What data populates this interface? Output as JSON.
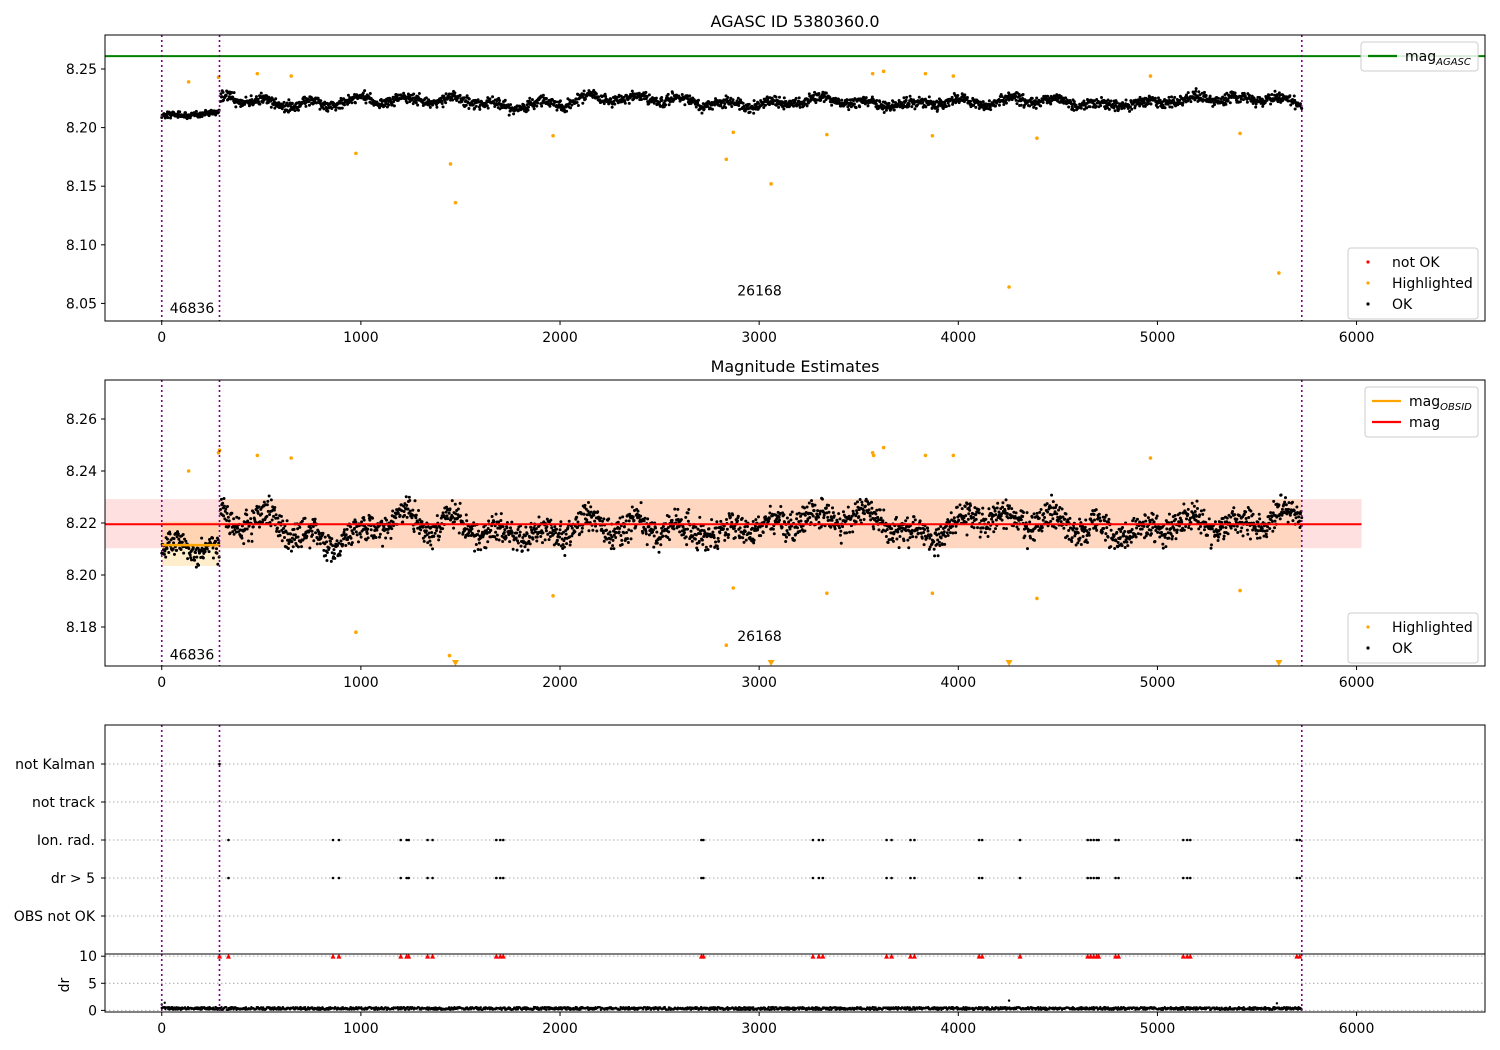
{
  "chart_data": [
    {
      "type": "scatter",
      "title": "AGASC ID 5380360.0",
      "xlabel": "",
      "ylabel": "",
      "xlim": [
        -285,
        6645
      ],
      "ylim": [
        8.035,
        8.279
      ],
      "xticks": [
        0,
        1000,
        2000,
        3000,
        4000,
        5000,
        6000
      ],
      "yticks": [
        8.05,
        8.1,
        8.15,
        8.2,
        8.25
      ],
      "grid": false,
      "vlines": [
        0,
        290,
        5725
      ],
      "obsid_labels": [
        {
          "text": "46836",
          "x": 40,
          "y": 8.046
        },
        {
          "text": "26168",
          "x": 2890,
          "y": 8.061
        }
      ],
      "hline": {
        "name": "mag",
        "sub": "AGASC",
        "y": 8.261,
        "color": "#008000"
      },
      "segments": [
        {
          "x0": 0,
          "x1": 290,
          "base": 8.21,
          "amp": 0.005
        },
        {
          "x0": 295,
          "x1": 5725,
          "base": 8.222,
          "amp": 0.008
        }
      ],
      "highlighted": [
        [
          135,
          8.239
        ],
        [
          285,
          8.243
        ],
        [
          480,
          8.246
        ],
        [
          650,
          8.244
        ],
        [
          975,
          8.178
        ],
        [
          1450,
          8.169
        ],
        [
          1475,
          8.136
        ],
        [
          1965,
          8.193
        ],
        [
          2835,
          8.173
        ],
        [
          2870,
          8.196
        ],
        [
          3060,
          8.152
        ],
        [
          3340,
          8.194
        ],
        [
          3570,
          8.246
        ],
        [
          3625,
          8.248
        ],
        [
          3835,
          8.246
        ],
        [
          3870,
          8.193
        ],
        [
          3975,
          8.244
        ],
        [
          4255,
          8.064
        ],
        [
          4395,
          8.191
        ],
        [
          4965,
          8.244
        ],
        [
          5415,
          8.195
        ],
        [
          5610,
          8.076
        ]
      ],
      "legends": [
        {
          "position": "upper-right",
          "items": [
            {
              "label": "mag",
              "sub": "AGASC",
              "kind": "line",
              "color": "#008000"
            }
          ]
        },
        {
          "position": "lower-right",
          "items": [
            {
              "label": "not OK",
              "kind": "dot",
              "color": "#ff0000"
            },
            {
              "label": "Highlighted",
              "kind": "dot",
              "color": "#ffa500"
            },
            {
              "label": "OK",
              "kind": "dot",
              "color": "#000000"
            }
          ]
        }
      ]
    },
    {
      "type": "scatter",
      "title": "Magnitude Estimates",
      "xlabel": "",
      "ylabel": "",
      "xlim": [
        -285,
        6645
      ],
      "ylim": [
        8.165,
        8.275
      ],
      "xticks": [
        0,
        1000,
        2000,
        3000,
        4000,
        5000,
        6000
      ],
      "yticks": [
        8.18,
        8.2,
        8.22,
        8.24,
        8.26
      ],
      "grid": false,
      "vlines": [
        0,
        290,
        5725
      ],
      "obsid_labels": [
        {
          "text": "46836",
          "x": 40,
          "y": 8.1695
        },
        {
          "text": "26168",
          "x": 2890,
          "y": 8.1765
        }
      ],
      "mag": {
        "value": 8.2195,
        "x0": -285,
        "x1": 6025,
        "band": [
          8.2103,
          8.2292
        ],
        "color": "#ff0000"
      },
      "mag_obsid": [
        {
          "x0": 0,
          "x1": 290,
          "value": 8.2115,
          "band": [
            8.2035,
            8.2205
          ],
          "color": "#ffa500"
        }
      ],
      "segments": [
        {
          "x0": 0,
          "x1": 290,
          "base": 8.211,
          "amp": 0.0075
        },
        {
          "x0": 295,
          "x1": 5725,
          "base": 8.2195,
          "amp": 0.01
        }
      ],
      "highlighted": [
        [
          135,
          8.24
        ],
        [
          285,
          8.247
        ],
        [
          290,
          8.248
        ],
        [
          480,
          8.246
        ],
        [
          650,
          8.245
        ],
        [
          975,
          8.178
        ],
        [
          1445,
          8.169
        ],
        [
          1965,
          8.192
        ],
        [
          2835,
          8.173
        ],
        [
          2870,
          8.195
        ],
        [
          3340,
          8.193
        ],
        [
          3570,
          8.247
        ],
        [
          3575,
          8.246
        ],
        [
          3625,
          8.249
        ],
        [
          3835,
          8.246
        ],
        [
          3870,
          8.193
        ],
        [
          3975,
          8.246
        ],
        [
          4395,
          8.191
        ],
        [
          4965,
          8.245
        ],
        [
          5415,
          8.194
        ]
      ],
      "below_limit": [
        1475,
        3060,
        4255,
        5610
      ],
      "legends": [
        {
          "position": "upper-right",
          "items": [
            {
              "label": "mag",
              "sub": "OBSID",
              "kind": "line",
              "color": "#ffa500"
            },
            {
              "label": "mag",
              "kind": "line",
              "color": "#ff0000"
            }
          ]
        },
        {
          "position": "lower-right",
          "items": [
            {
              "label": "Highlighted",
              "kind": "dot",
              "color": "#ffa500"
            },
            {
              "label": "OK",
              "kind": "dot",
              "color": "#000000"
            }
          ]
        }
      ]
    },
    {
      "type": "scatter",
      "title": "",
      "xlabel": "",
      "ylabel": "",
      "xlim": [
        -285,
        6645
      ],
      "categories": [
        "not Kalman",
        "not track",
        "Ion. rad.",
        "dr > 5",
        "OBS not OK"
      ],
      "vlines": [
        0,
        290,
        5725
      ],
      "flag_x": {
        "not Kalman": [
          290
        ],
        "not track": [],
        "Ion. rad.": [
          335,
          860,
          890,
          1200,
          1230,
          1240,
          1335,
          1360,
          1680,
          1700,
          1715,
          2710,
          2720,
          3270,
          3300,
          3320,
          3640,
          3665,
          3760,
          3780,
          4105,
          4120,
          4310,
          4650,
          4665,
          4680,
          4695,
          4705,
          4790,
          4805,
          5130,
          5150,
          5165,
          5700,
          5715
        ],
        "dr > 5": [
          335,
          860,
          890,
          1200,
          1230,
          1240,
          1335,
          1360,
          1680,
          1700,
          1715,
          2710,
          2720,
          3270,
          3300,
          3320,
          3640,
          3665,
          3760,
          3780,
          4105,
          4120,
          4310,
          4650,
          4665,
          4680,
          4695,
          4705,
          4790,
          4805,
          5130,
          5150,
          5165,
          5700,
          5715
        ],
        "OBS not OK": []
      }
    },
    {
      "type": "scatter",
      "title": "",
      "xlabel": "",
      "ylabel": "dr",
      "xlim": [
        -285,
        6645
      ],
      "ylim": [
        -0.3,
        10.4
      ],
      "yticks": [
        0,
        5,
        10
      ],
      "vlines": [
        0,
        290,
        5725
      ],
      "typical": [
        0.1,
        0.6
      ],
      "outliers": [
        [
          0,
          1.1
        ],
        [
          15,
          1.4
        ],
        [
          4255,
          1.8
        ],
        [
          5600,
          1.3
        ]
      ],
      "clipped_markers": [
        290,
        335,
        860,
        890,
        1200,
        1230,
        1240,
        1335,
        1360,
        1680,
        1700,
        1715,
        2710,
        2720,
        3270,
        3300,
        3320,
        3640,
        3665,
        3760,
        3780,
        4105,
        4120,
        4310,
        4650,
        4665,
        4680,
        4695,
        4705,
        4790,
        4805,
        5130,
        5150,
        5165,
        5700,
        5715
      ]
    }
  ]
}
